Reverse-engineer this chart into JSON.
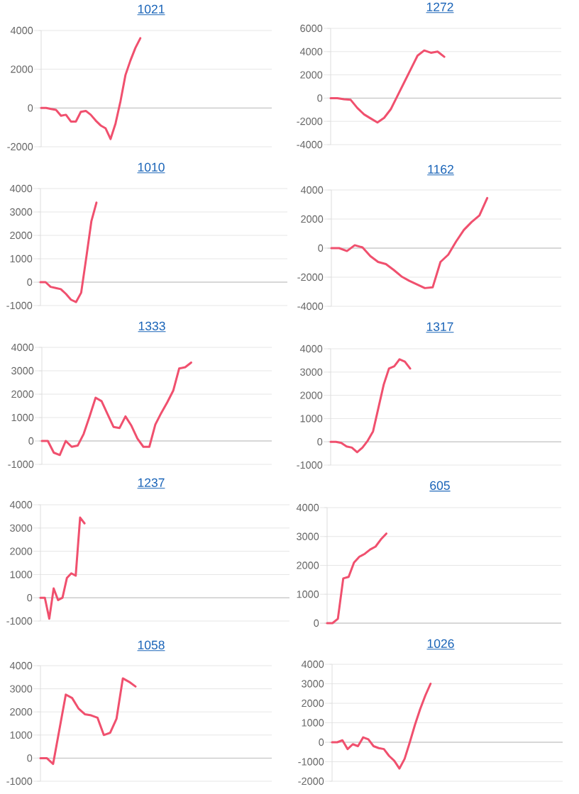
{
  "chart_data": [
    {
      "type": "line",
      "title": "1021",
      "categories": [
        null,
        null,
        null,
        null,
        null,
        null,
        null,
        null,
        null,
        null,
        null,
        null,
        null,
        null,
        null,
        null,
        null,
        null,
        null,
        null,
        null,
        null,
        null,
        null,
        null,
        null,
        null,
        null,
        null,
        null,
        null,
        null,
        null,
        null,
        null,
        null,
        null,
        null,
        null,
        null,
        null,
        null,
        null,
        null,
        null,
        null,
        null
      ],
      "values": [
        0,
        0,
        -50,
        -100,
        -400,
        -350,
        -700,
        -700,
        -200,
        -150,
        -350,
        -650,
        -900,
        -1050,
        -1600,
        -800,
        350,
        1700,
        2450,
        3100,
        3600,
        null,
        null,
        null,
        null,
        null,
        null,
        null,
        null,
        null,
        null,
        null,
        null,
        null,
        null,
        null,
        null,
        null,
        null,
        null,
        null,
        null,
        null,
        null,
        null,
        null,
        null
      ],
      "color": "#f0506e",
      "ylim": [
        -2000,
        4000
      ],
      "yticks": [
        -2000,
        0,
        2000,
        4000
      ],
      "grid": "y",
      "tick_labels": "y",
      "marker": "none",
      "line_style": "solid"
    },
    {
      "type": "line",
      "title": "1272",
      "categories": [
        null,
        null,
        null,
        null,
        null,
        null,
        null,
        null,
        null,
        null,
        null,
        null,
        null,
        null,
        null,
        null,
        null,
        null,
        null,
        null,
        null,
        null,
        null,
        null,
        null,
        null,
        null,
        null,
        null,
        null,
        null,
        null,
        null,
        null,
        null
      ],
      "values": [
        0,
        0,
        -100,
        -150,
        -850,
        -1400,
        -1750,
        -2100,
        -1700,
        -950,
        200,
        1350,
        2500,
        3650,
        4100,
        3900,
        4000,
        3550,
        null,
        null,
        null,
        null,
        null,
        null,
        null,
        null,
        null,
        null,
        null,
        null,
        null,
        null,
        null,
        null,
        null
      ],
      "color": "#f0506e",
      "ylim": [
        -4000,
        6000
      ],
      "yticks": [
        -4000,
        -2000,
        0,
        2000,
        4000,
        6000
      ],
      "grid": "y",
      "tick_labels": "y",
      "marker": "none",
      "line_style": "solid"
    },
    {
      "type": "line",
      "title": "1010",
      "categories": [
        null,
        null,
        null,
        null,
        null,
        null,
        null,
        null,
        null,
        null,
        null,
        null,
        null,
        null,
        null,
        null,
        null,
        null,
        null,
        null,
        null,
        null,
        null,
        null,
        null,
        null,
        null,
        null,
        null,
        null,
        null,
        null,
        null,
        null,
        null,
        null,
        null,
        null,
        null,
        null,
        null,
        null,
        null,
        null,
        null,
        null,
        null,
        null,
        null
      ],
      "values": [
        0,
        0,
        -200,
        -250,
        -300,
        -500,
        -750,
        -850,
        -450,
        1050,
        2600,
        3400,
        null,
        null,
        null,
        null,
        null,
        null,
        null,
        null,
        null,
        null,
        null,
        null,
        null,
        null,
        null,
        null,
        null,
        null,
        null,
        null,
        null,
        null,
        null,
        null,
        null,
        null,
        null,
        null,
        null,
        null,
        null,
        null,
        null,
        null,
        null,
        null,
        null
      ],
      "color": "#f0506e",
      "ylim": [
        -1000,
        4000
      ],
      "yticks": [
        -1000,
        0,
        1000,
        2000,
        3000,
        4000
      ],
      "grid": "y",
      "tick_labels": "y",
      "marker": "none",
      "line_style": "solid"
    },
    {
      "type": "line",
      "title": "1162",
      "categories": [
        null,
        null,
        null,
        null,
        null,
        null,
        null,
        null,
        null,
        null,
        null,
        null,
        null,
        null,
        null,
        null,
        null,
        null,
        null,
        null,
        null,
        null,
        null,
        null,
        null,
        null,
        null,
        null,
        null,
        null
      ],
      "values": [
        0,
        0,
        -200,
        200,
        50,
        -550,
        -950,
        -1100,
        -1500,
        -1950,
        -2250,
        -2500,
        -2750,
        -2700,
        -950,
        -450,
        450,
        1250,
        1800,
        2250,
        3450,
        null,
        null,
        null,
        null,
        null,
        null,
        null,
        null,
        null
      ],
      "color": "#f0506e",
      "ylim": [
        -4000,
        4000
      ],
      "yticks": [
        -4000,
        -2000,
        0,
        2000,
        4000
      ],
      "grid": "y",
      "tick_labels": "y",
      "marker": "none",
      "line_style": "solid"
    },
    {
      "type": "line",
      "title": "1333",
      "categories": [
        null,
        null,
        null,
        null,
        null,
        null,
        null,
        null,
        null,
        null,
        null,
        null,
        null,
        null,
        null,
        null,
        null,
        null,
        null,
        null,
        null,
        null,
        null,
        null,
        null,
        null,
        null,
        null,
        null,
        null,
        null,
        null,
        null,
        null,
        null,
        null,
        null,
        null,
        null
      ],
      "values": [
        0,
        0,
        -500,
        -600,
        0,
        -250,
        -200,
        300,
        1050,
        1850,
        1700,
        1150,
        600,
        550,
        1050,
        650,
        100,
        -250,
        -250,
        700,
        1200,
        1650,
        2150,
        3100,
        3150,
        3350,
        null,
        null,
        null,
        null,
        null,
        null,
        null,
        null,
        null,
        null,
        null,
        null,
        null
      ],
      "color": "#f0506e",
      "ylim": [
        -1000,
        4000
      ],
      "yticks": [
        -1000,
        0,
        1000,
        2000,
        3000,
        4000
      ],
      "grid": "y",
      "tick_labels": "y",
      "marker": "none",
      "line_style": "solid"
    },
    {
      "type": "line",
      "title": "1317",
      "categories": [
        null,
        null,
        null,
        null,
        null,
        null,
        null,
        null,
        null,
        null,
        null,
        null,
        null,
        null,
        null,
        null,
        null,
        null,
        null,
        null,
        null,
        null,
        null,
        null,
        null,
        null,
        null,
        null,
        null,
        null,
        null,
        null,
        null,
        null,
        null,
        null,
        null,
        null,
        null,
        null,
        null,
        null,
        null,
        null
      ],
      "values": [
        0,
        0,
        -50,
        -200,
        -250,
        -450,
        -250,
        50,
        450,
        1450,
        2450,
        3150,
        3250,
        3550,
        3450,
        3150,
        null,
        null,
        null,
        null,
        null,
        null,
        null,
        null,
        null,
        null,
        null,
        null,
        null,
        null,
        null,
        null,
        null,
        null,
        null,
        null,
        null,
        null,
        null,
        null,
        null,
        null,
        null,
        null
      ],
      "color": "#f0506e",
      "ylim": [
        -1000,
        4000
      ],
      "yticks": [
        -1000,
        0,
        1000,
        2000,
        3000,
        4000
      ],
      "grid": "y",
      "tick_labels": "y",
      "marker": "none",
      "line_style": "solid"
    },
    {
      "type": "line",
      "title": "1237",
      "categories": [
        null,
        null,
        null,
        null,
        null,
        null,
        null,
        null,
        null,
        null,
        null,
        null,
        null,
        null,
        null,
        null,
        null,
        null,
        null,
        null,
        null,
        null,
        null,
        null,
        null,
        null,
        null,
        null,
        null,
        null,
        null,
        null,
        null,
        null,
        null,
        null,
        null,
        null,
        null,
        null,
        null,
        null,
        null,
        null,
        null,
        null,
        null,
        null,
        null,
        null,
        null,
        null,
        null,
        null,
        null,
        null,
        null
      ],
      "values": [
        0,
        0,
        -900,
        400,
        -100,
        0,
        850,
        1050,
        950,
        3450,
        3200,
        null,
        null,
        null,
        null,
        null,
        null,
        null,
        null,
        null,
        null,
        null,
        null,
        null,
        null,
        null,
        null,
        null,
        null,
        null,
        null,
        null,
        null,
        null,
        null,
        null,
        null,
        null,
        null,
        null,
        null,
        null,
        null,
        null,
        null,
        null,
        null,
        null,
        null,
        null,
        null,
        null,
        null,
        null,
        null,
        null,
        null
      ],
      "color": "#f0506e",
      "ylim": [
        -1000,
        4000
      ],
      "yticks": [
        -1000,
        0,
        1000,
        2000,
        3000,
        4000
      ],
      "grid": "y",
      "tick_labels": "y",
      "marker": "none",
      "line_style": "solid"
    },
    {
      "type": "line",
      "title": "605",
      "categories": [
        null,
        null,
        null,
        null,
        null,
        null,
        null,
        null,
        null,
        null,
        null,
        null,
        null,
        null,
        null,
        null,
        null,
        null,
        null,
        null,
        null,
        null,
        null,
        null,
        null,
        null,
        null,
        null,
        null,
        null,
        null,
        null,
        null,
        null,
        null,
        null,
        null,
        null,
        null,
        null,
        null,
        null,
        null,
        null
      ],
      "values": [
        0,
        0,
        150,
        1550,
        1600,
        2100,
        2300,
        2400,
        2550,
        2650,
        2900,
        3100,
        null,
        null,
        null,
        null,
        null,
        null,
        null,
        null,
        null,
        null,
        null,
        null,
        null,
        null,
        null,
        null,
        null,
        null,
        null,
        null,
        null,
        null,
        null,
        null,
        null,
        null,
        null,
        null,
        null,
        null,
        null,
        null
      ],
      "color": "#f0506e",
      "ylim": [
        0,
        4000
      ],
      "yticks": [
        0,
        1000,
        2000,
        3000,
        4000
      ],
      "grid": "y",
      "tick_labels": "y",
      "marker": "none",
      "line_style": "solid"
    },
    {
      "type": "line",
      "title": "1058",
      "categories": [
        null,
        null,
        null,
        null,
        null,
        null,
        null,
        null,
        null,
        null,
        null,
        null,
        null,
        null,
        null,
        null,
        null,
        null,
        null,
        null,
        null,
        null,
        null,
        null,
        null,
        null,
        null,
        null,
        null,
        null,
        null,
        null,
        null,
        null,
        null,
        null,
        null
      ],
      "values": [
        0,
        0,
        -250,
        1250,
        2750,
        2600,
        2150,
        1900,
        1850,
        1750,
        1000,
        1100,
        1700,
        3450,
        3300,
        3100,
        null,
        null,
        null,
        null,
        null,
        null,
        null,
        null,
        null,
        null,
        null,
        null,
        null,
        null,
        null,
        null,
        null,
        null,
        null,
        null,
        null
      ],
      "color": "#f0506e",
      "ylim": [
        -1000,
        4000
      ],
      "yticks": [
        -1000,
        0,
        1000,
        2000,
        3000,
        4000
      ],
      "grid": "y",
      "tick_labels": "y",
      "marker": "none",
      "line_style": "solid"
    },
    {
      "type": "line",
      "title": "1026",
      "categories": [
        null,
        null,
        null,
        null,
        null,
        null,
        null,
        null,
        null,
        null,
        null,
        null,
        null,
        null,
        null,
        null,
        null,
        null,
        null,
        null,
        null,
        null,
        null,
        null,
        null,
        null,
        null,
        null,
        null,
        null,
        null,
        null,
        null,
        null,
        null,
        null,
        null,
        null,
        null,
        null,
        null,
        null,
        null,
        null,
        null
      ],
      "values": [
        0,
        0,
        100,
        -350,
        -100,
        -200,
        250,
        150,
        -200,
        -300,
        -350,
        -700,
        -950,
        -1350,
        -850,
        0,
        900,
        1700,
        2400,
        3000,
        null,
        null,
        null,
        null,
        null,
        null,
        null,
        null,
        null,
        null,
        null,
        null,
        null,
        null,
        null,
        null,
        null,
        null,
        null,
        null,
        null,
        null,
        null,
        null,
        null
      ],
      "color": "#f0506e",
      "ylim": [
        -2000,
        4000
      ],
      "yticks": [
        -2000,
        -1000,
        0,
        1000,
        2000,
        3000,
        4000
      ],
      "grid": "y",
      "tick_labels": "y",
      "marker": "none",
      "line_style": "solid"
    }
  ]
}
